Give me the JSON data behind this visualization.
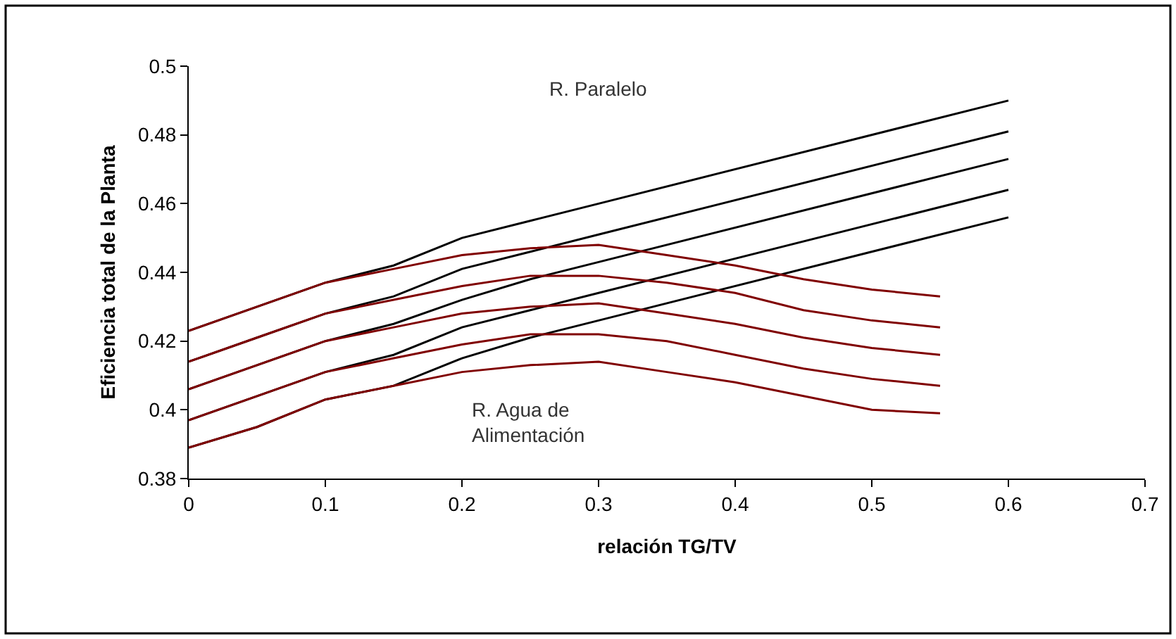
{
  "chart_data": {
    "type": "line",
    "xlabel": "relación TG/TV",
    "ylabel": "Eficiencia total de la Planta",
    "xlim": [
      0,
      0.7
    ],
    "xticks": [
      0,
      0.1,
      0.2,
      0.3,
      0.4,
      0.5,
      0.6,
      0.7
    ],
    "ylim": [
      0.38,
      0.5
    ],
    "yticks": [
      0.38,
      0.4,
      0.42,
      0.44,
      0.46,
      0.48,
      0.5
    ],
    "marker": "none",
    "line_style": "solid",
    "annotations": [
      "R. Paralelo",
      "R. Agua de\nAlimentación"
    ],
    "series": [
      {
        "color": "#000000",
        "x": [
          0,
          0.05,
          0.1,
          0.15,
          0.2,
          0.25,
          0.3,
          0.6
        ],
        "values": [
          0.423,
          0.43,
          0.437,
          0.442,
          0.45,
          0.455,
          0.46,
          0.49
        ]
      },
      {
        "color": "#000000",
        "x": [
          0,
          0.05,
          0.1,
          0.15,
          0.2,
          0.25,
          0.3,
          0.6
        ],
        "values": [
          0.414,
          0.421,
          0.428,
          0.433,
          0.441,
          0.446,
          0.451,
          0.481
        ]
      },
      {
        "color": "#000000",
        "x": [
          0,
          0.05,
          0.1,
          0.15,
          0.2,
          0.25,
          0.3,
          0.6
        ],
        "values": [
          0.406,
          0.413,
          0.42,
          0.425,
          0.432,
          0.438,
          0.443,
          0.473
        ]
      },
      {
        "color": "#000000",
        "x": [
          0,
          0.05,
          0.1,
          0.15,
          0.2,
          0.25,
          0.3,
          0.6
        ],
        "values": [
          0.397,
          0.404,
          0.411,
          0.416,
          0.424,
          0.429,
          0.434,
          0.464
        ]
      },
      {
        "color": "#000000",
        "x": [
          0,
          0.05,
          0.1,
          0.15,
          0.2,
          0.25,
          0.3,
          0.6
        ],
        "values": [
          0.389,
          0.395,
          0.403,
          0.407,
          0.415,
          0.421,
          0.426,
          0.456
        ]
      },
      {
        "color": "#800000",
        "x": [
          0,
          0.05,
          0.1,
          0.15,
          0.2,
          0.25,
          0.3,
          0.35,
          0.4,
          0.45,
          0.5,
          0.55
        ],
        "values": [
          0.423,
          0.43,
          0.437,
          0.441,
          0.445,
          0.447,
          0.448,
          0.445,
          0.442,
          0.438,
          0.435,
          0.433
        ]
      },
      {
        "color": "#800000",
        "x": [
          0,
          0.05,
          0.1,
          0.15,
          0.2,
          0.25,
          0.3,
          0.35,
          0.4,
          0.45,
          0.5,
          0.55
        ],
        "values": [
          0.414,
          0.421,
          0.428,
          0.432,
          0.436,
          0.439,
          0.439,
          0.437,
          0.434,
          0.429,
          0.426,
          0.424
        ]
      },
      {
        "color": "#800000",
        "x": [
          0,
          0.05,
          0.1,
          0.15,
          0.2,
          0.25,
          0.3,
          0.35,
          0.4,
          0.45,
          0.5,
          0.55
        ],
        "values": [
          0.406,
          0.413,
          0.42,
          0.424,
          0.428,
          0.43,
          0.431,
          0.428,
          0.425,
          0.421,
          0.418,
          0.416
        ]
      },
      {
        "color": "#800000",
        "x": [
          0,
          0.05,
          0.1,
          0.15,
          0.2,
          0.25,
          0.3,
          0.35,
          0.4,
          0.45,
          0.5,
          0.55
        ],
        "values": [
          0.397,
          0.404,
          0.411,
          0.415,
          0.419,
          0.422,
          0.422,
          0.42,
          0.416,
          0.412,
          0.409,
          0.407
        ]
      },
      {
        "color": "#800000",
        "x": [
          0,
          0.05,
          0.1,
          0.15,
          0.2,
          0.25,
          0.3,
          0.35,
          0.4,
          0.45,
          0.5,
          0.55
        ],
        "values": [
          0.389,
          0.395,
          0.403,
          0.407,
          0.411,
          0.413,
          0.414,
          0.411,
          0.408,
          0.404,
          0.4,
          0.399
        ]
      }
    ]
  }
}
